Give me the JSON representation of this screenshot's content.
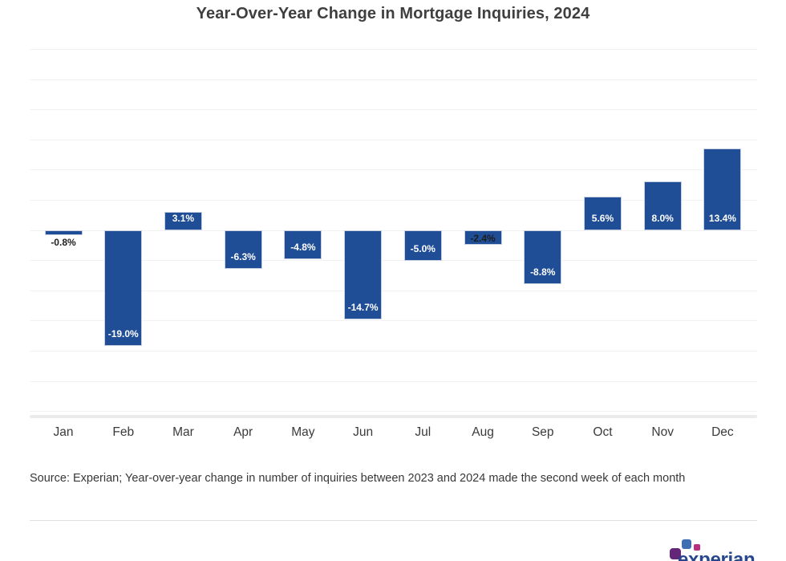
{
  "chart_data": {
    "type": "bar",
    "title": "Year-Over-Year Change in Mortgage Inquiries, 2024",
    "categories": [
      "Jan",
      "Feb",
      "Mar",
      "Apr",
      "May",
      "Jun",
      "Jul",
      "Aug",
      "Sep",
      "Oct",
      "Nov",
      "Dec"
    ],
    "values": [
      -0.8,
      -19.0,
      3.1,
      -6.3,
      -4.8,
      -14.7,
      -5.0,
      -2.4,
      -8.8,
      5.6,
      8.0,
      13.4
    ],
    "bar_labels": [
      "-0.8%",
      "-19.0%",
      "3.1%",
      "-6.3%",
      "-4.8%",
      "-14.7%",
      "-5.0%",
      "-2.4%",
      "-8.8%",
      "5.6%",
      "8.0%",
      "13.4%"
    ],
    "label_variants": [
      "below-dark",
      "inside-white",
      "inside-white",
      "inside-white",
      "inside-white",
      "inside-white",
      "inside-white",
      "inside-dark",
      "inside-white",
      "inside-white",
      "inside-white",
      "inside-white"
    ],
    "xlabel": "",
    "ylabel": "",
    "ylim": [
      -31,
      30
    ],
    "gridline_step_pct": 5,
    "grid": true,
    "legend": "none",
    "colors": {
      "bar": "#1f4e96",
      "bar_border": "#c6d0e0",
      "gridline": "#f2f2f2",
      "axis_band": "#ebebeb",
      "title_text": "#3f3f3f",
      "month_text": "#3b3b3b",
      "label_white": "#ffffff",
      "label_dark": "#1c1c1c"
    }
  },
  "footer": {
    "source_text": "Source: Experian; Year-over-year change in number of inquiries between 2023 and 2024 made the second week of each month",
    "logo": {
      "text": "experian",
      "text_color": "#26478d",
      "dot_purple": "#632678",
      "dot_blue": "#406eb3",
      "dot_pink": "#ba2f7d"
    }
  }
}
